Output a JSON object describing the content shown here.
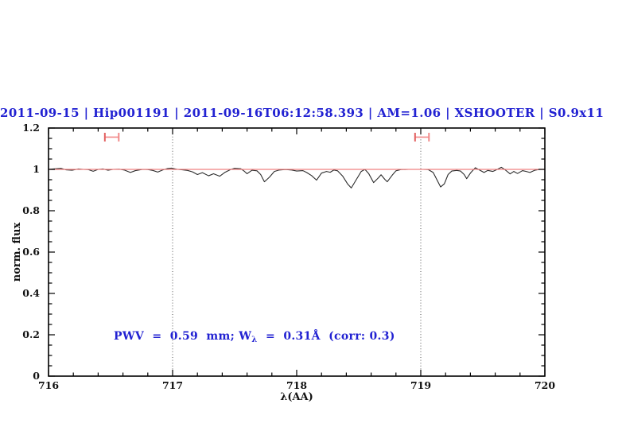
{
  "window": {
    "background": "#ffffff"
  },
  "title": {
    "text": "2011-09-15 | Hip001191 | 2011-09-16T06:12:58.393 | AM=1.06 | XSHOOTER | S0.9x11",
    "color": "#2222d2"
  },
  "annotation": {
    "prefix": "PWV  =  0.59  mm; W",
    "subscript": "λ",
    "suffix": "  =  0.31Å  (corr: 0.3)",
    "color": "#2222d2"
  },
  "axes": {
    "xlabel": "λ(AA)",
    "ylabel": "norm. flux",
    "x_range": [
      716,
      720
    ],
    "y_range": [
      0,
      1.2
    ],
    "x_major_ticks": [
      {
        "value": 716,
        "label": "716"
      },
      {
        "value": 717,
        "label": "717"
      },
      {
        "value": 718,
        "label": "718"
      },
      {
        "value": 719,
        "label": "719"
      },
      {
        "value": 720,
        "label": "720"
      }
    ],
    "x_minor_step": 0.2,
    "y_major_ticks": [
      {
        "value": 0,
        "label": "0"
      },
      {
        "value": 0.2,
        "label": "0.2"
      },
      {
        "value": 0.4,
        "label": "0.4"
      },
      {
        "value": 0.6,
        "label": "0.6"
      },
      {
        "value": 0.8,
        "label": "0.8"
      },
      {
        "value": 1,
        "label": "1"
      },
      {
        "value": 1.2,
        "label": "1.2"
      }
    ],
    "y_minor_step": 0.05,
    "frame_color": "#000000"
  },
  "chart_data": {
    "type": "line",
    "title": "2011-09-15 | Hip001191 | 2011-09-16T06:12:58.393 | AM=1.06 | XSHOOTER | S0.9x11",
    "xlabel": "λ(AA)",
    "ylabel": "norm. flux",
    "xlim": [
      716,
      720
    ],
    "ylim": [
      0,
      1.2
    ],
    "grid": false,
    "legend": "none",
    "series": [
      {
        "name": "observed-spectrum",
        "color": "#2b2b2b",
        "points": [
          [
            716.0,
            1.0
          ],
          [
            716.04,
            1.002
          ],
          [
            716.1,
            1.005
          ],
          [
            716.14,
            0.998
          ],
          [
            716.19,
            0.996
          ],
          [
            716.24,
            1.002
          ],
          [
            716.28,
            1.0
          ],
          [
            716.32,
            0.999
          ],
          [
            716.36,
            0.991
          ],
          [
            716.4,
            1.0
          ],
          [
            716.44,
            1.002
          ],
          [
            716.48,
            0.996
          ],
          [
            716.52,
            1.0
          ],
          [
            716.57,
            1.001
          ],
          [
            716.61,
            0.997
          ],
          [
            716.66,
            0.985
          ],
          [
            716.7,
            0.994
          ],
          [
            716.76,
            1.0
          ],
          [
            716.8,
            0.999
          ],
          [
            716.84,
            0.995
          ],
          [
            716.88,
            0.987
          ],
          [
            716.92,
            0.997
          ],
          [
            716.96,
            1.004
          ],
          [
            716.99,
            1.006
          ],
          [
            717.04,
            1.0
          ],
          [
            717.08,
            0.998
          ],
          [
            717.12,
            0.995
          ],
          [
            717.16,
            0.988
          ],
          [
            717.2,
            0.975
          ],
          [
            717.24,
            0.984
          ],
          [
            717.29,
            0.969
          ],
          [
            717.33,
            0.979
          ],
          [
            717.38,
            0.967
          ],
          [
            717.42,
            0.985
          ],
          [
            717.47,
            1.0
          ],
          [
            717.5,
            1.005
          ],
          [
            717.55,
            1.003
          ],
          [
            717.58,
            0.99
          ],
          [
            717.6,
            0.979
          ],
          [
            717.64,
            0.996
          ],
          [
            717.68,
            0.993
          ],
          [
            717.71,
            0.975
          ],
          [
            717.74,
            0.94
          ],
          [
            717.78,
            0.962
          ],
          [
            717.82,
            0.99
          ],
          [
            717.86,
            0.997
          ],
          [
            717.91,
            0.999
          ],
          [
            717.96,
            0.997
          ],
          [
            718.0,
            0.992
          ],
          [
            718.05,
            0.994
          ],
          [
            718.08,
            0.985
          ],
          [
            718.12,
            0.97
          ],
          [
            718.16,
            0.948
          ],
          [
            718.2,
            0.982
          ],
          [
            718.24,
            0.99
          ],
          [
            718.27,
            0.986
          ],
          [
            718.3,
            0.997
          ],
          [
            718.33,
            0.993
          ],
          [
            718.37,
            0.968
          ],
          [
            718.41,
            0.93
          ],
          [
            718.44,
            0.91
          ],
          [
            718.48,
            0.95
          ],
          [
            718.52,
            0.99
          ],
          [
            718.55,
            1.0
          ],
          [
            718.58,
            0.98
          ],
          [
            718.62,
            0.936
          ],
          [
            718.66,
            0.96
          ],
          [
            718.68,
            0.974
          ],
          [
            718.71,
            0.952
          ],
          [
            718.73,
            0.94
          ],
          [
            718.77,
            0.972
          ],
          [
            718.8,
            0.993
          ],
          [
            718.84,
            0.999
          ],
          [
            718.9,
            1.0
          ],
          [
            718.96,
            1.0
          ],
          [
            719.02,
            1.0
          ],
          [
            719.06,
            0.999
          ],
          [
            719.1,
            0.985
          ],
          [
            719.13,
            0.95
          ],
          [
            719.16,
            0.915
          ],
          [
            719.19,
            0.93
          ],
          [
            719.22,
            0.975
          ],
          [
            719.25,
            0.992
          ],
          [
            719.29,
            0.995
          ],
          [
            719.32,
            0.992
          ],
          [
            719.35,
            0.975
          ],
          [
            719.37,
            0.955
          ],
          [
            719.4,
            0.982
          ],
          [
            719.44,
            1.008
          ],
          [
            719.47,
            0.998
          ],
          [
            719.51,
            0.985
          ],
          [
            719.54,
            0.995
          ],
          [
            719.58,
            0.99
          ],
          [
            719.61,
            0.998
          ],
          [
            719.65,
            1.01
          ],
          [
            719.68,
            0.998
          ],
          [
            719.72,
            0.978
          ],
          [
            719.75,
            0.99
          ],
          [
            719.78,
            0.98
          ],
          [
            719.82,
            0.994
          ],
          [
            719.85,
            0.99
          ],
          [
            719.88,
            0.985
          ],
          [
            719.92,
            0.996
          ],
          [
            719.96,
            1.0
          ],
          [
            720.0,
            1.0
          ]
        ]
      },
      {
        "name": "continuum-reference",
        "color": "#f08080",
        "points": [
          [
            716.0,
            1.0
          ],
          [
            720.0,
            1.0
          ]
        ]
      }
    ],
    "vlines": [
      {
        "x": 717.0,
        "style": "dotted",
        "color": "#555555"
      },
      {
        "x": 719.0,
        "style": "dotted",
        "color": "#555555"
      }
    ],
    "range_markers": [
      {
        "x": 716.51,
        "y": 1.156,
        "half_width": 0.056,
        "cap_half_height": 0.021,
        "color": "#f18a8a",
        "left_cap_color": "#e25f5f"
      },
      {
        "x": 719.01,
        "y": 1.156,
        "half_width": 0.056,
        "cap_half_height": 0.021,
        "color": "#f18a8a",
        "left_cap_color": "#e25f5f"
      }
    ]
  }
}
